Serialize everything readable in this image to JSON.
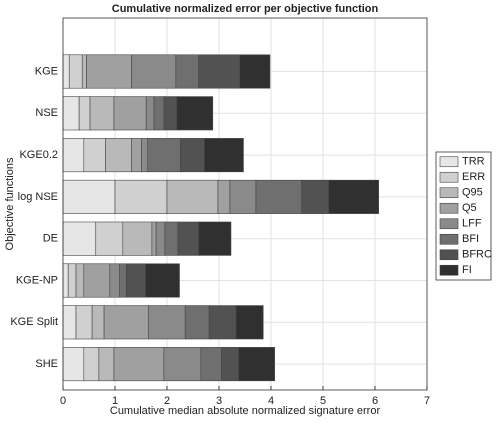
{
  "chart_data": {
    "type": "stacked-barh",
    "title": "Cumulative normalized error per objective function",
    "x_label": "Cumulative median absolute normalized signature error",
    "y_label": "Objective functions",
    "categories": [
      "KGE",
      "NSE",
      "KGE0.2",
      "log NSE",
      "DE",
      "KGE-NP",
      "KGE Split",
      "SHE"
    ],
    "series": [
      {
        "name": "TRR",
        "color": "#e6e6e6",
        "values": [
          0.12,
          0.31,
          0.4,
          1.0,
          0.63,
          0.1,
          0.25,
          0.4
        ]
      },
      {
        "name": "ERR",
        "color": "#d0d0d0",
        "values": [
          0.25,
          0.21,
          0.42,
          1.0,
          0.52,
          0.15,
          0.31,
          0.29
        ]
      },
      {
        "name": "Q95",
        "color": "#b9b9b9",
        "values": [
          0.08,
          0.46,
          0.5,
          0.98,
          0.56,
          0.15,
          0.23,
          0.29
        ]
      },
      {
        "name": "Q5",
        "color": "#a0a0a0",
        "values": [
          0.87,
          0.62,
          0.19,
          0.23,
          0.08,
          0.5,
          0.85,
          0.96
        ]
      },
      {
        "name": "LFF",
        "color": "#8a8a8a",
        "values": [
          0.85,
          0.15,
          0.12,
          0.5,
          0.17,
          0.19,
          0.71,
          0.71
        ]
      },
      {
        "name": "BFI",
        "color": "#6f6f6f",
        "values": [
          0.44,
          0.19,
          0.63,
          0.88,
          0.25,
          0.13,
          0.46,
          0.4
        ]
      },
      {
        "name": "BFRC",
        "color": "#525252",
        "values": [
          0.79,
          0.25,
          0.46,
          0.52,
          0.4,
          0.37,
          0.52,
          0.33
        ]
      },
      {
        "name": "FI",
        "color": "#303030",
        "values": [
          0.58,
          0.69,
          0.75,
          0.96,
          0.62,
          0.65,
          0.52,
          0.69
        ]
      }
    ],
    "xlim": [
      0,
      7
    ],
    "xticks": [
      0,
      1,
      2,
      3,
      4,
      5,
      6,
      7
    ],
    "grid": true,
    "legend": "right"
  }
}
